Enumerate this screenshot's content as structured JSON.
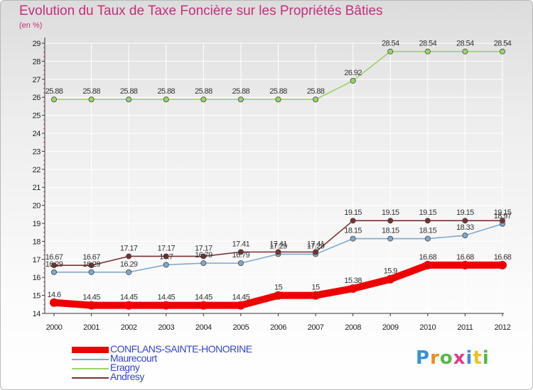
{
  "title": "Evolution du Taux de Taxe Foncière sur les Propriétés Bâties",
  "unit_label": "(en %)",
  "logo": {
    "text": "Proxiti",
    "colors": [
      "#3a8fd6",
      "#f08a1c",
      "#58b84a",
      "#e23a8a",
      "#3a8fd6",
      "#f0c01c",
      "#58b84a"
    ]
  },
  "chart_data": {
    "type": "line",
    "categories": [
      "2000",
      "2001",
      "2002",
      "2003",
      "2004",
      "2005",
      "2006",
      "2007",
      "2008",
      "2009",
      "2010",
      "2011",
      "2012"
    ],
    "ylim": [
      14,
      29
    ],
    "yticks": [
      14,
      15,
      16,
      17,
      18,
      19,
      20,
      21,
      22,
      23,
      24,
      25,
      26,
      27,
      28,
      29
    ],
    "series": [
      {
        "name": "CONFLANS-SAINTE-HONORINE",
        "color": "#ee0000",
        "values": [
          14.6,
          14.45,
          14.45,
          14.45,
          14.45,
          14.45,
          15,
          15,
          15.38,
          15.9,
          16.68,
          16.68,
          16.68
        ],
        "labels": [
          "14.6",
          "14.45",
          "14.45",
          "14.45",
          "14.45",
          "14.45",
          "15",
          "15",
          "15.38",
          "15.9",
          "16.68",
          "16.68",
          "16.68"
        ]
      },
      {
        "name": "Maurecourt",
        "color": "#7ea9cf",
        "values": [
          16.29,
          16.29,
          16.29,
          16.7,
          16.79,
          16.79,
          17.29,
          17.29,
          18.15,
          18.15,
          18.15,
          18.33,
          18.97
        ],
        "labels": [
          "16.29",
          "16.29",
          "16.29",
          "16.7",
          "16.79",
          "16.79",
          "17.29",
          "17.29",
          "18.15",
          "18.15",
          "18.15",
          "18.33",
          "18.97"
        ]
      },
      {
        "name": "Eragny",
        "color": "#99d466",
        "values": [
          25.88,
          25.88,
          25.88,
          25.88,
          25.88,
          25.88,
          25.88,
          25.88,
          26.92,
          28.54,
          28.54,
          28.54,
          28.54
        ],
        "labels": [
          "25.88",
          "25.88",
          "25.88",
          "25.88",
          "25.88",
          "25.88",
          "25.88",
          "25.88",
          "26.92",
          "28.54",
          "28.54",
          "28.54",
          "28.54"
        ]
      },
      {
        "name": "Andresy",
        "color": "#7a3033",
        "values": [
          16.67,
          16.67,
          17.17,
          17.17,
          17.17,
          17.41,
          17.41,
          17.41,
          19.15,
          19.15,
          19.15,
          19.15,
          19.15
        ],
        "labels": [
          "16.67",
          "16.67",
          "17.17",
          "17.17",
          "17.17",
          "17.41",
          "17.41",
          "17.41",
          "19.15",
          "19.15",
          "19.15",
          "19.15",
          "19.15"
        ]
      }
    ]
  }
}
